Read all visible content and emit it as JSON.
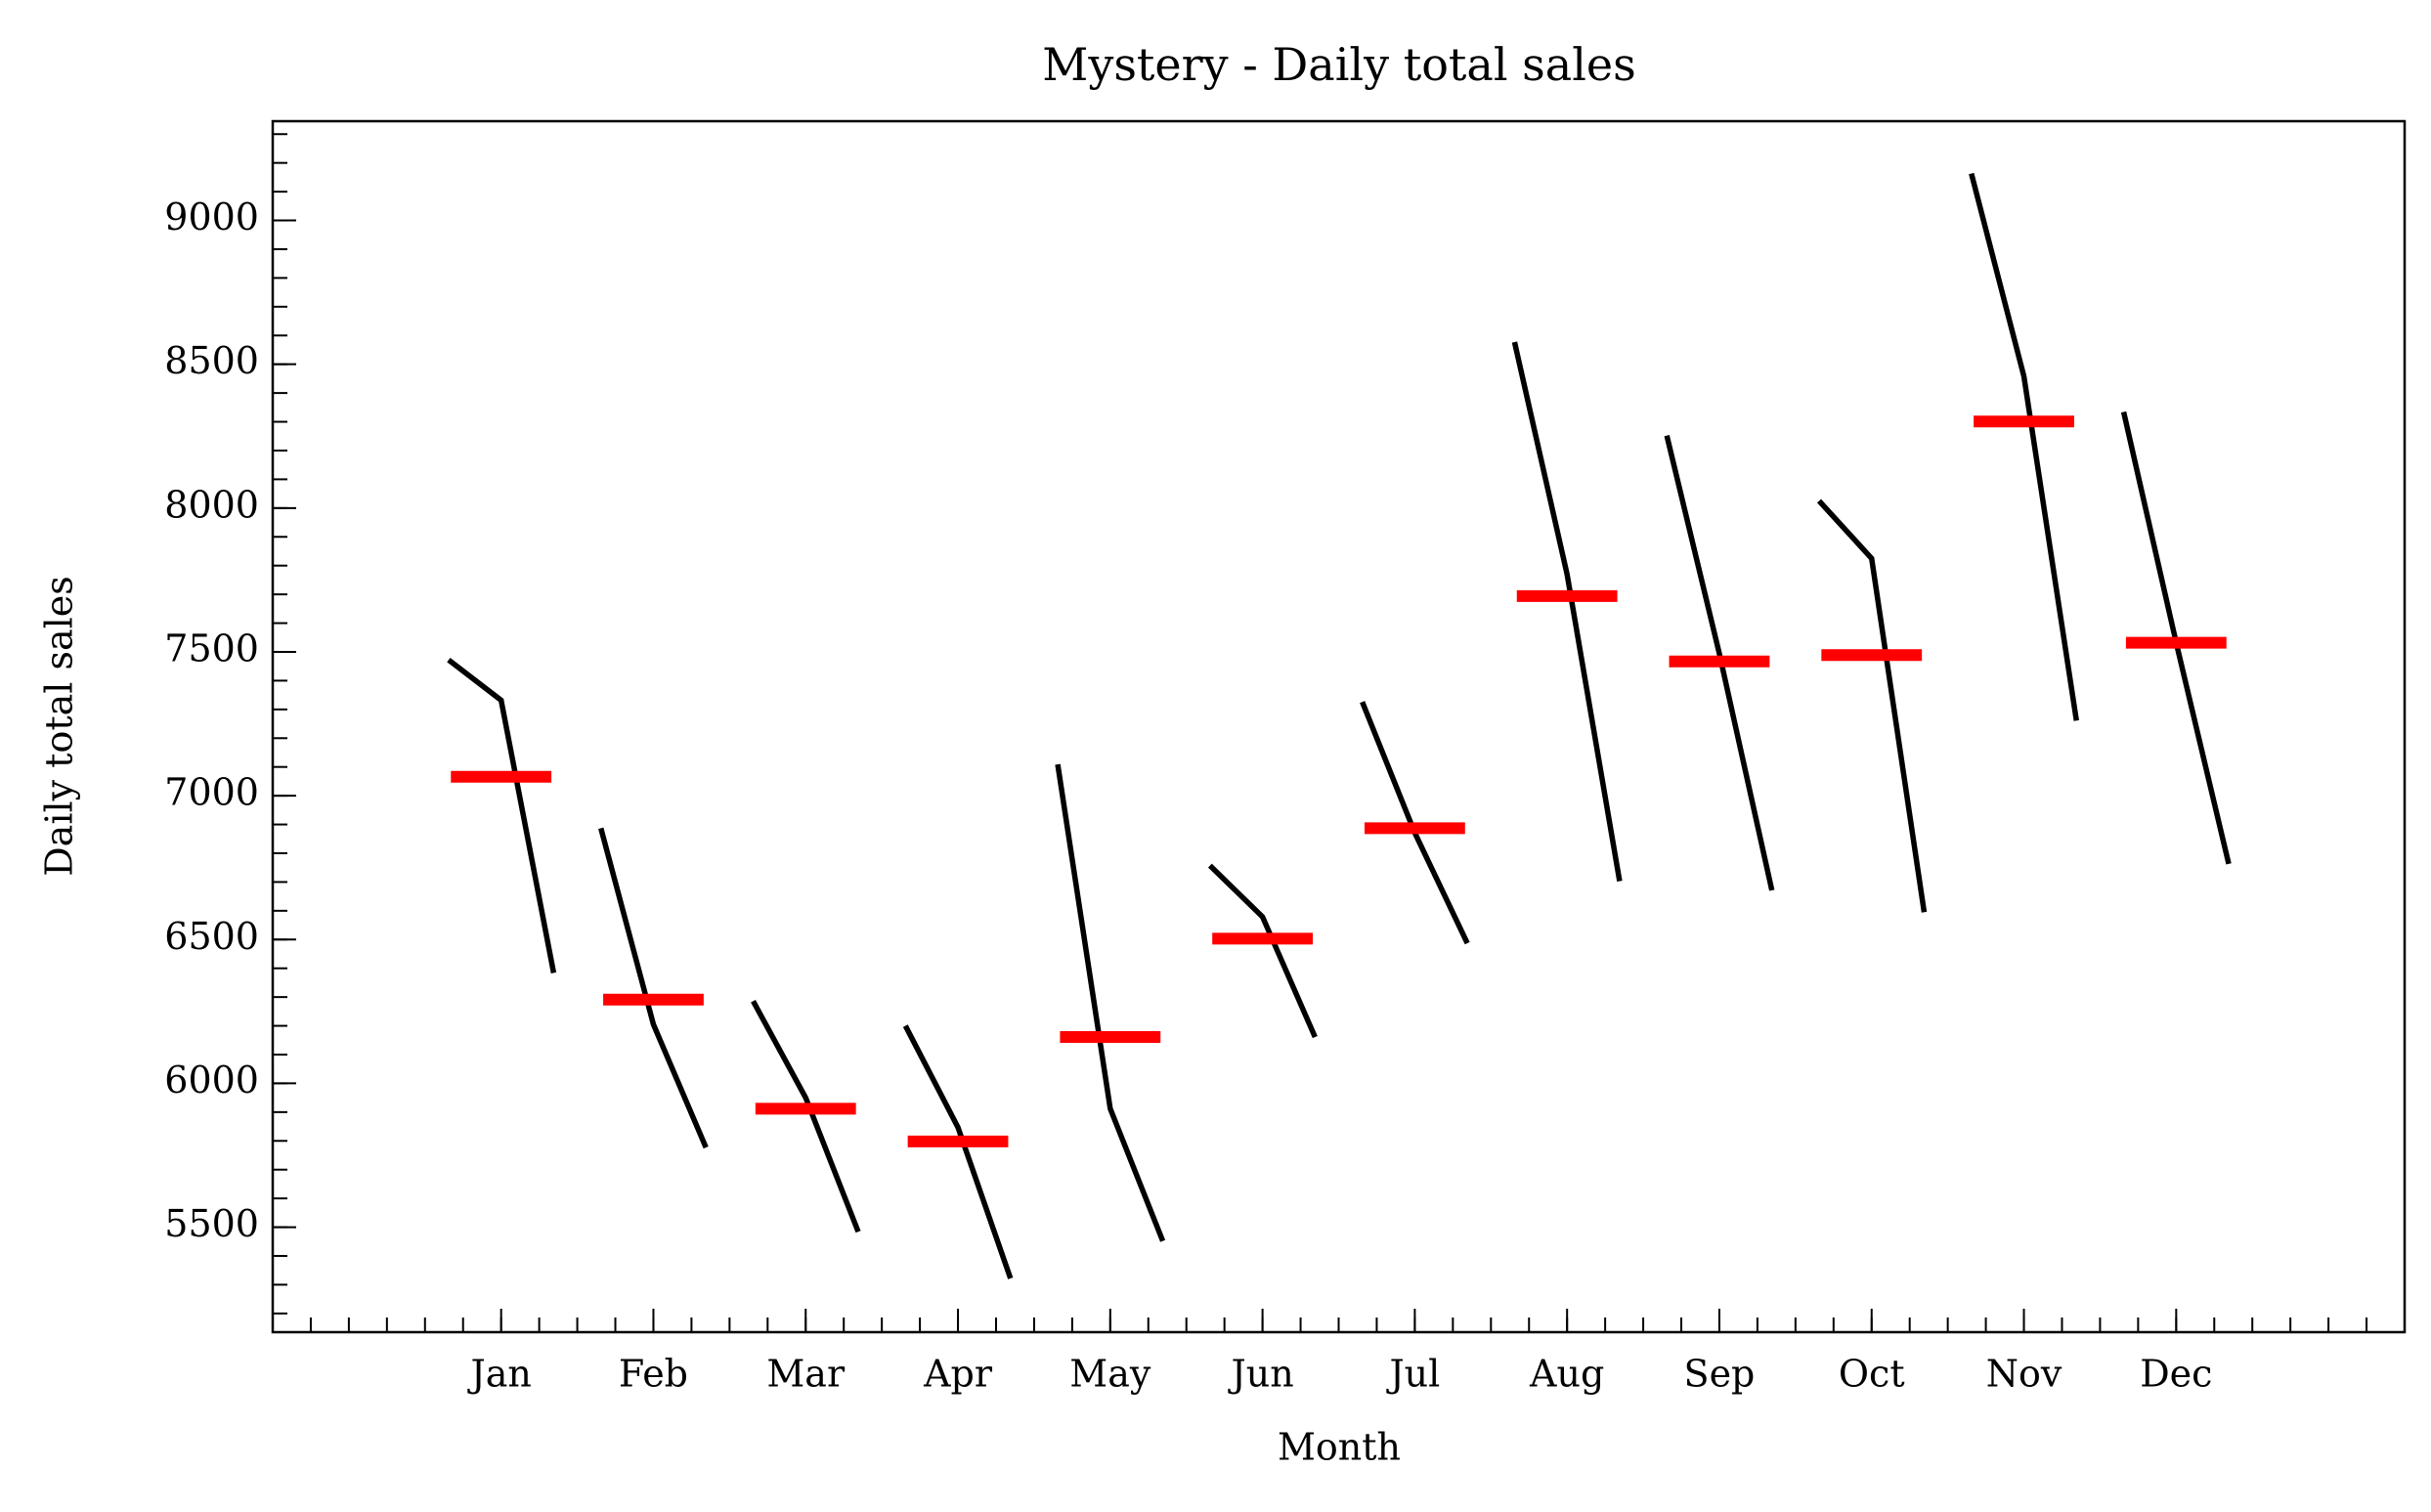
{
  "chart_data": {
    "type": "month_plot",
    "title": "Mystery - Daily total sales",
    "xlabel": "Month",
    "ylabel": "Daily total sales",
    "categories": [
      "Jan",
      "Feb",
      "Mar",
      "Apr",
      "May",
      "Jun",
      "Jul",
      "Aug",
      "Sep",
      "Oct",
      "Nov",
      "Dec"
    ],
    "values": [
      [
        7472,
        7332,
        6384
      ],
      [
        6887,
        6205,
        5777
      ],
      [
        6286,
        5950,
        5484
      ],
      [
        6200,
        5847,
        5322
      ],
      [
        7109,
        5912,
        5452
      ],
      [
        6757,
        6579,
        6161
      ],
      [
        7326,
        6871,
        6487
      ],
      [
        8577,
        7770,
        6703
      ],
      [
        8252,
        7494,
        6671
      ],
      [
        8025,
        7825,
        6595
      ],
      [
        9163,
        8458,
        7261
      ],
      [
        8334,
        7532,
        6763
      ]
    ],
    "means": [
      7066,
      6291,
      5912,
      5798,
      6161,
      6503,
      6887,
      7694,
      7467,
      7489,
      8301,
      7532
    ],
    "color": "#000000",
    "mean_color": "#ff0000",
    "ylim": [
      5135,
      9345
    ],
    "yticks": [
      5500,
      6000,
      6500,
      7000,
      7500,
      8000,
      8500,
      9000
    ]
  }
}
